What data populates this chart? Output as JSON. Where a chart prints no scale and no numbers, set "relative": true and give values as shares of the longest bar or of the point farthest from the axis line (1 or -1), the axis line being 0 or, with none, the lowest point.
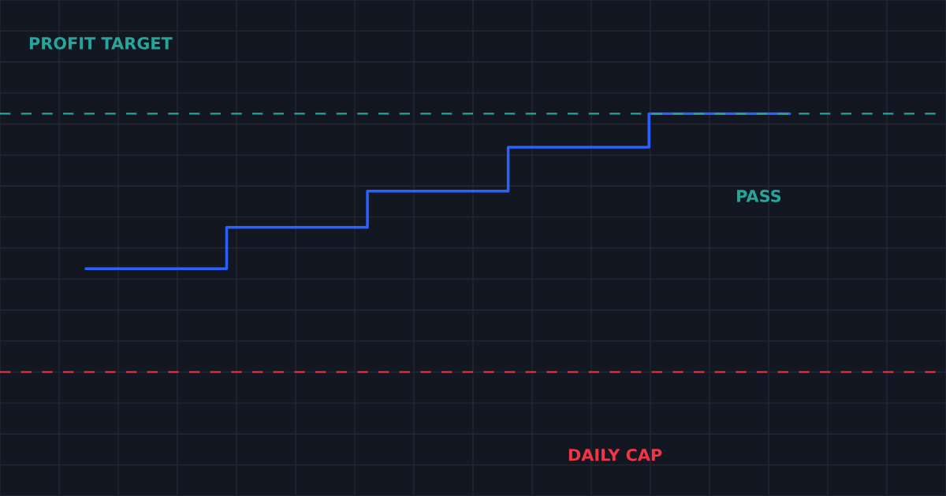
{
  "chart_data": {
    "type": "step",
    "relative": true,
    "categories": [
      null,
      null,
      null,
      null,
      null,
      null
    ],
    "series": [
      {
        "color": "#2962ff",
        "values": [
          0.4,
          0.56,
          0.7,
          0.87,
          1.0,
          1.0
        ]
      }
    ],
    "ref_lines": [
      {
        "axis": "y",
        "value": 1.0,
        "label": "PROFIT TARGET",
        "color": "#26a69a",
        "line_style": "dashed"
      },
      {
        "axis": "y",
        "value": 0,
        "label": "DAILY CAP",
        "color": "#f23645",
        "line_style": "dashed"
      }
    ],
    "annotations": [
      "PASS"
    ],
    "grid": true,
    "legend": false,
    "marker": "none",
    "line_style": "solid"
  }
}
